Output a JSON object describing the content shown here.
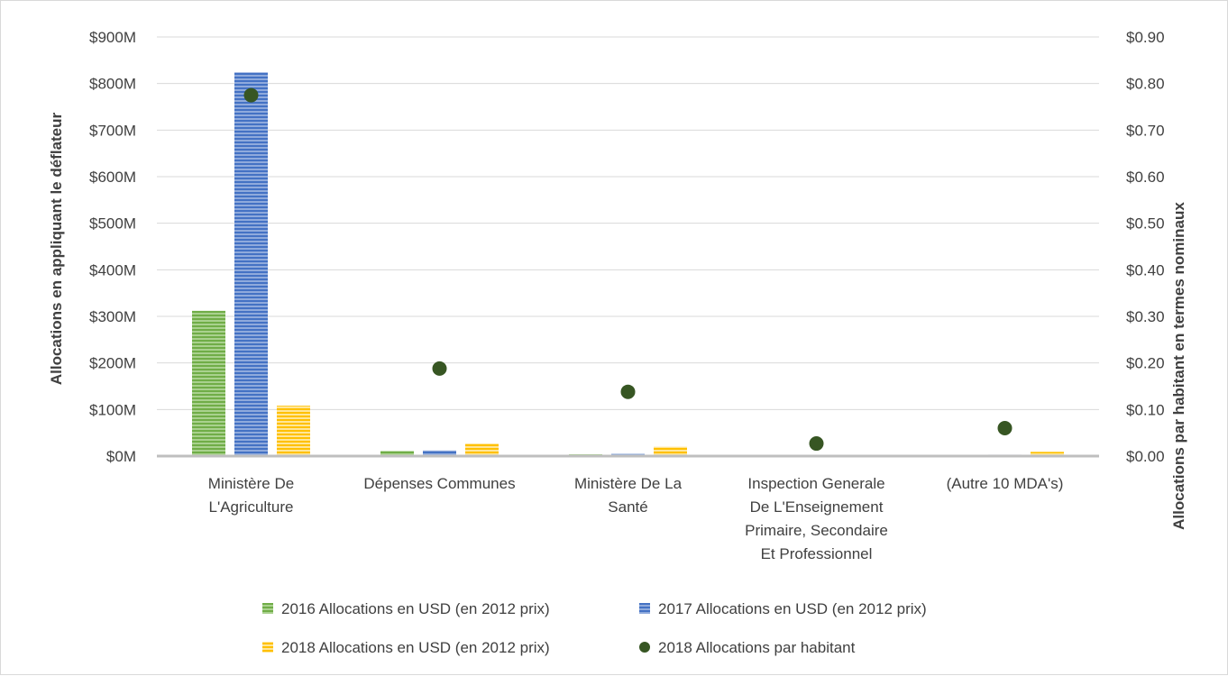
{
  "chart_data": {
    "type": "bar",
    "categories": [
      [
        "Ministère De",
        "L'Agriculture"
      ],
      [
        "Dépenses Communes"
      ],
      [
        "Ministère De La",
        "Santé"
      ],
      [
        "Inspection Generale",
        "De L'Enseignement",
        "Primaire, Secondaire",
        "Et Professionnel"
      ],
      [
        "(Autre 10 MDA's)"
      ]
    ],
    "series": [
      {
        "name": "2016 Allocations en USD (en 2012 prix)",
        "axis": "left",
        "values": [
          312,
          11,
          4,
          0,
          2
        ],
        "color": "#70ad47"
      },
      {
        "name": "2017 Allocations en USD (en 2012 prix)",
        "axis": "left",
        "values": [
          824,
          12,
          5,
          0,
          3
        ],
        "color": "#4472c4"
      },
      {
        "name": "2018 Allocations en USD (en 2012 prix)",
        "axis": "left",
        "values": [
          108,
          27,
          20,
          1,
          9
        ],
        "color": "#ffc000"
      },
      {
        "name": "2018 Allocations par habitant",
        "axis": "right",
        "type": "scatter",
        "values": [
          0.775,
          0.188,
          0.138,
          0.027,
          0.06
        ],
        "color": "#375623"
      }
    ],
    "ylabel": "Allocations en appliquant le déflateur",
    "y2label": "Allocations par habitant en termes nominaux",
    "ylim": [
      0,
      900
    ],
    "y2lim": [
      0,
      0.9
    ],
    "yticks": [
      "$0M",
      "$100M",
      "$200M",
      "$300M",
      "$400M",
      "$500M",
      "$600M",
      "$700M",
      "$800M",
      "$900M"
    ],
    "y2ticks": [
      "$0.00",
      "$0.10",
      "$0.20",
      "$0.30",
      "$0.40",
      "$0.50",
      "$0.60",
      "$0.70",
      "$0.80",
      "$0.90"
    ],
    "grid": true,
    "legend": "bottom"
  }
}
